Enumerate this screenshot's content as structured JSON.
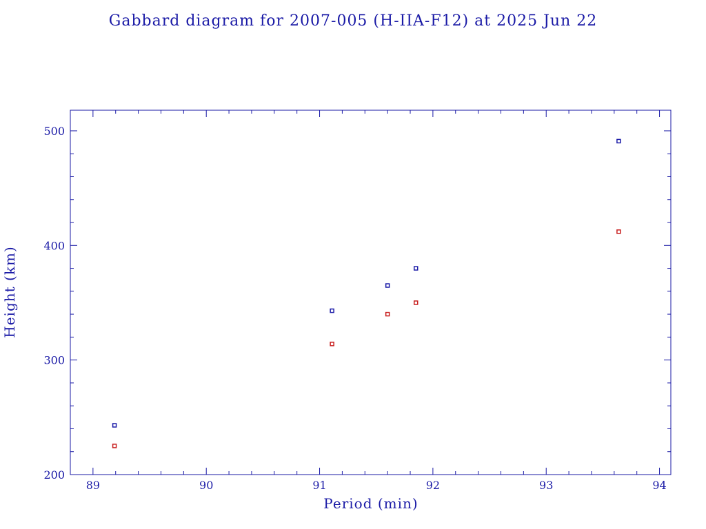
{
  "colors": {
    "text": "#1a1aa6",
    "apogee": "#1c1ca8",
    "perigee": "#c81e1e"
  },
  "chart_data": {
    "type": "scatter",
    "title": "Gabbard diagram for 2007-005 (H-IIA-F12) at 2025 Jun 22",
    "xlabel": "Period (min)",
    "ylabel": "Height (km)",
    "xlim": [
      88.8,
      94.1
    ],
    "ylim": [
      200,
      518
    ],
    "x_ticks": [
      89,
      90,
      91,
      92,
      93,
      94
    ],
    "y_ticks": [
      200,
      300,
      400,
      500
    ],
    "x_minor_step": 0.2,
    "y_minor_step": 20,
    "grid": false,
    "series": [
      {
        "color_key": "apogee",
        "points": [
          {
            "x": 89.19,
            "y": 243
          },
          {
            "x": 91.11,
            "y": 343
          },
          {
            "x": 91.6,
            "y": 365
          },
          {
            "x": 91.85,
            "y": 380
          },
          {
            "x": 93.64,
            "y": 491
          }
        ]
      },
      {
        "color_key": "perigee",
        "points": [
          {
            "x": 89.19,
            "y": 225
          },
          {
            "x": 91.11,
            "y": 314
          },
          {
            "x": 91.6,
            "y": 340
          },
          {
            "x": 91.85,
            "y": 350
          },
          {
            "x": 93.64,
            "y": 412
          }
        ]
      }
    ]
  }
}
